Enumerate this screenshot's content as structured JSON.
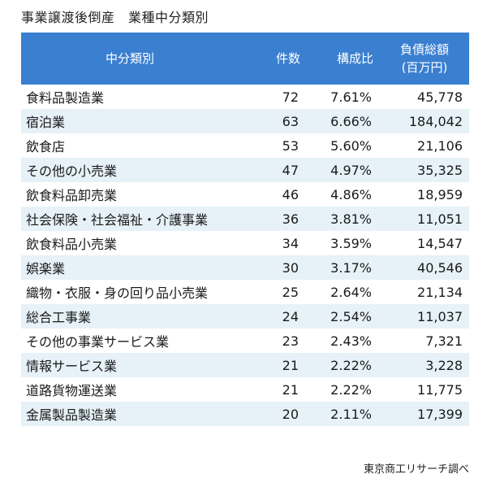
{
  "title": "事業譲渡後倒産　業種中分類別",
  "table": {
    "headers": {
      "name": "中分類別",
      "count": "件数",
      "ratio": "構成比",
      "debt_line1": "負債総額",
      "debt_line2": "(百万円)"
    },
    "rows": [
      {
        "name": "食料品製造業",
        "count": "72",
        "ratio": "7.61%",
        "debt": "45,778"
      },
      {
        "name": "宿泊業",
        "count": "63",
        "ratio": "6.66%",
        "debt": "184,042"
      },
      {
        "name": "飲食店",
        "count": "53",
        "ratio": "5.60%",
        "debt": "21,106"
      },
      {
        "name": "その他の小売業",
        "count": "47",
        "ratio": "4.97%",
        "debt": "35,325"
      },
      {
        "name": "飲食料品卸売業",
        "count": "46",
        "ratio": "4.86%",
        "debt": "18,959"
      },
      {
        "name": "社会保険・社会福祉・介護事業",
        "count": "36",
        "ratio": "3.81%",
        "debt": "11,051"
      },
      {
        "name": "飲食料品小売業",
        "count": "34",
        "ratio": "3.59%",
        "debt": "14,547"
      },
      {
        "name": "娯楽業",
        "count": "30",
        "ratio": "3.17%",
        "debt": "40,546"
      },
      {
        "name": "織物・衣服・身の回り品小売業",
        "count": "25",
        "ratio": "2.64%",
        "debt": "21,134"
      },
      {
        "name": "総合工事業",
        "count": "24",
        "ratio": "2.54%",
        "debt": "11,037"
      },
      {
        "name": "その他の事業サービス業",
        "count": "23",
        "ratio": "2.43%",
        "debt": "7,321"
      },
      {
        "name": "情報サービス業",
        "count": "21",
        "ratio": "2.22%",
        "debt": "3,228"
      },
      {
        "name": "道路貨物運送業",
        "count": "21",
        "ratio": "2.22%",
        "debt": "11,775"
      },
      {
        "name": "金属製品製造業",
        "count": "20",
        "ratio": "2.11%",
        "debt": "17,399"
      }
    ]
  },
  "source": "東京商工リサーチ調べ",
  "colors": {
    "header_bg": "#3a7fd0",
    "row_alt_bg": "#e6f1f8"
  }
}
